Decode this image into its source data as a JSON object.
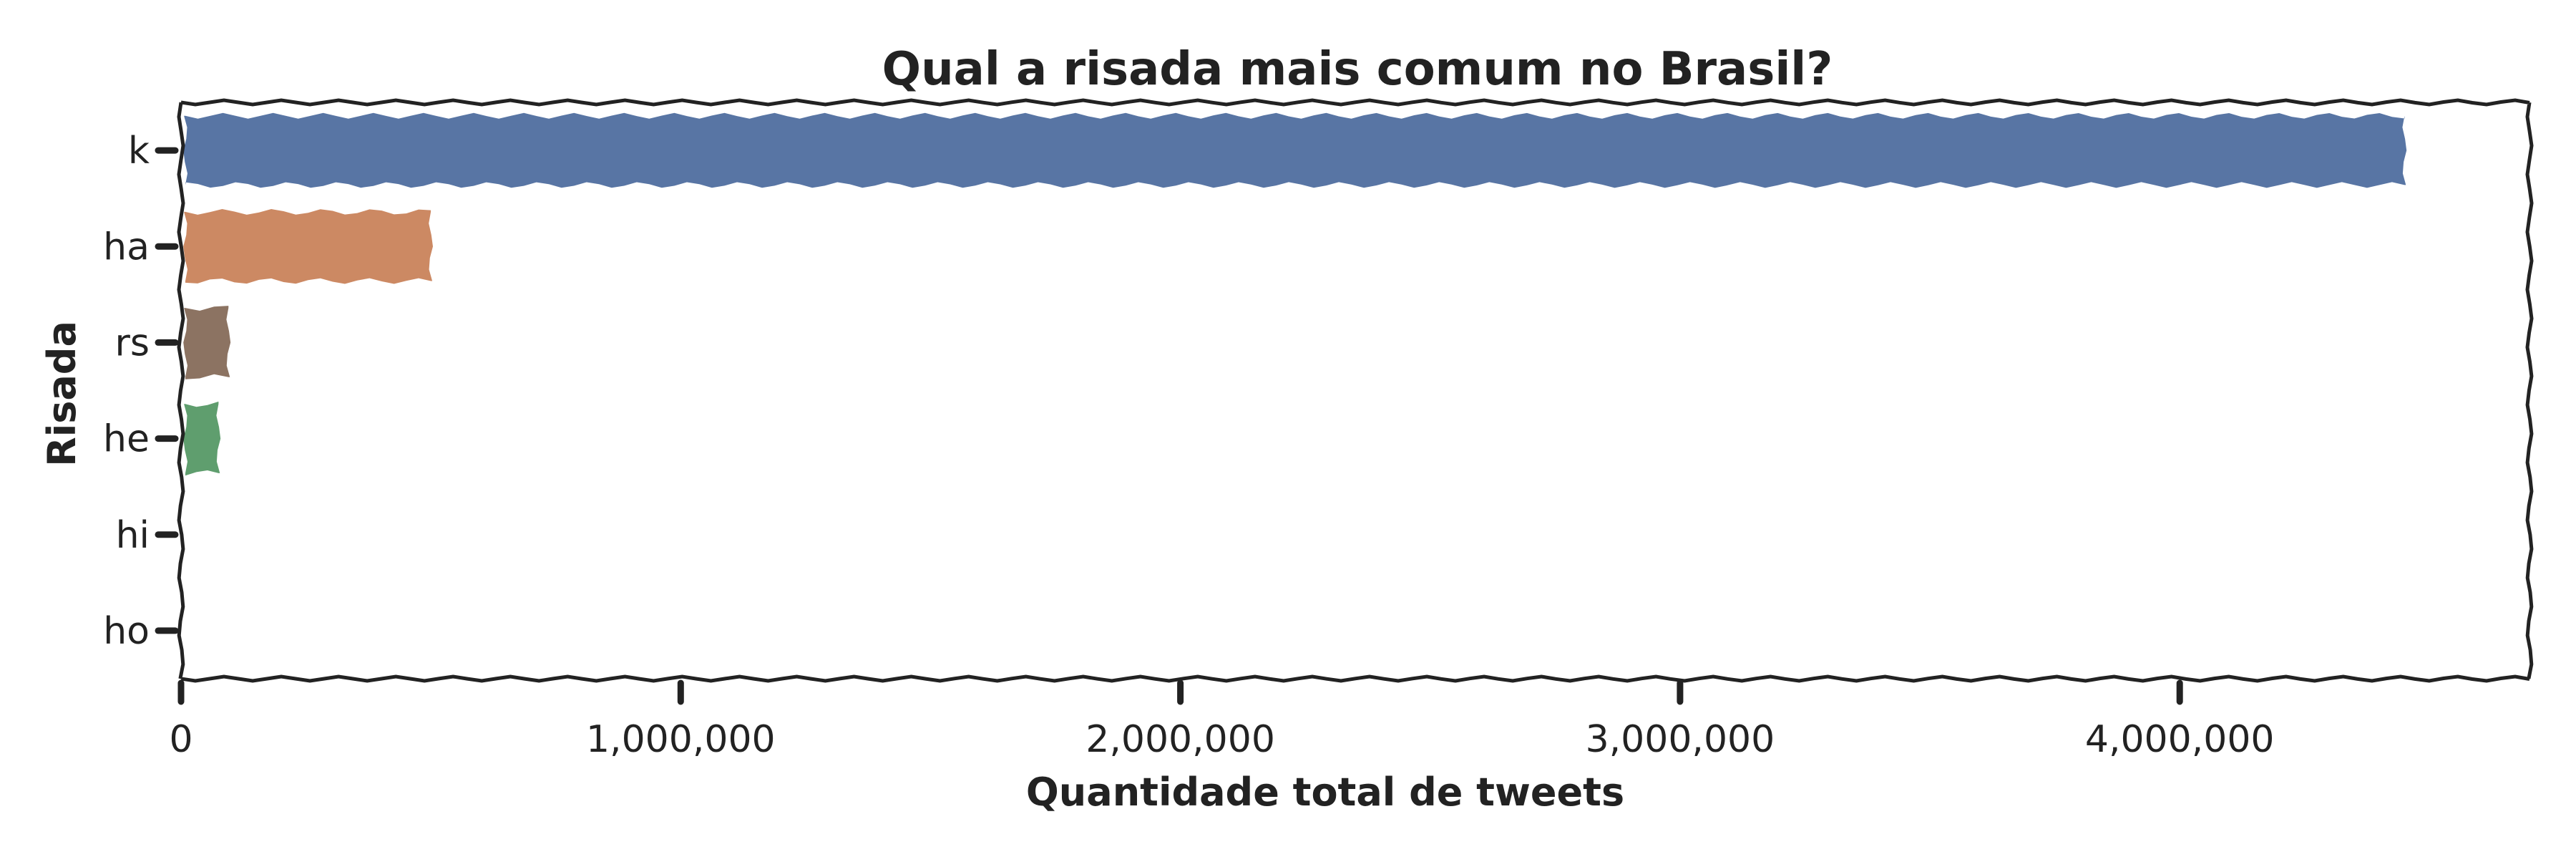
{
  "chart_data": {
    "type": "bar",
    "orientation": "horizontal",
    "title": "Qual a risada mais comum no Brasil?",
    "xlabel": "Quantidade total de tweets",
    "ylabel": "Risada",
    "categories": [
      "k",
      "ha",
      "rs",
      "he",
      "hi",
      "ho"
    ],
    "values": [
      4450000,
      500000,
      95000,
      75000,
      0,
      0
    ],
    "colors": [
      "#5875a4",
      "#cc8963",
      "#8c7362",
      "#5f9e6e",
      "#b55d60",
      "#857aab"
    ],
    "xlim": [
      0,
      4700000
    ],
    "x_ticks": [
      0,
      1000000,
      2000000,
      3000000,
      4000000
    ],
    "x_tick_labels": [
      "0",
      "1,000,000",
      "2,000,000",
      "3,000,000",
      "4,000,000"
    ],
    "grid": false,
    "legend": "none",
    "style": "xkcd"
  }
}
